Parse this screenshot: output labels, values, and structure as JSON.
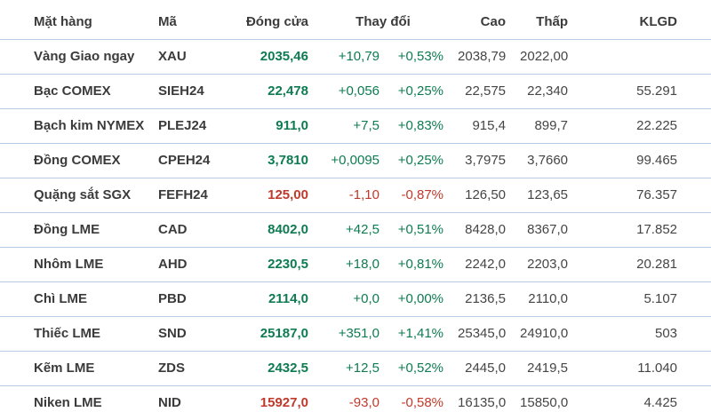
{
  "colors": {
    "up": "#0e7b52",
    "down": "#c0392b",
    "heading": "#3b3b3b",
    "text": "#454545",
    "divider": "#b7cce2"
  },
  "header": {
    "name": "Mặt hàng",
    "code": "Mã",
    "close": "Đóng cửa",
    "change": "Thay đổi",
    "high": "Cao",
    "low": "Thấp",
    "volume": "KLGD"
  },
  "chart_data": {
    "type": "table",
    "columns": [
      "Mặt hàng",
      "Mã",
      "Đóng cửa",
      "Thay đổi",
      "Thay đổi %",
      "Cao",
      "Thấp",
      "KLGD"
    ],
    "rows": [
      {
        "name": "Vàng Giao ngay",
        "code": "XAU",
        "close": "2035,46",
        "change": "+10,79",
        "percent": "+0,53%",
        "high": "2038,79",
        "low": "2022,00",
        "volume": "",
        "trend": "up"
      },
      {
        "name": "Bạc COMEX",
        "code": "SIEH24",
        "close": "22,478",
        "change": "+0,056",
        "percent": "+0,25%",
        "high": "22,575",
        "low": "22,340",
        "volume": "55.291",
        "trend": "up"
      },
      {
        "name": "Bạch kim NYMEX",
        "code": "PLEJ24",
        "close": "911,0",
        "change": "+7,5",
        "percent": "+0,83%",
        "high": "915,4",
        "low": "899,7",
        "volume": "22.225",
        "trend": "up"
      },
      {
        "name": "Đồng COMEX",
        "code": "CPEH24",
        "close": "3,7810",
        "change": "+0,0095",
        "percent": "+0,25%",
        "high": "3,7975",
        "low": "3,7660",
        "volume": "99.465",
        "trend": "up"
      },
      {
        "name": "Quặng sắt SGX",
        "code": "FEFH24",
        "close": "125,00",
        "change": "-1,10",
        "percent": "-0,87%",
        "high": "126,50",
        "low": "123,65",
        "volume": "76.357",
        "trend": "down"
      },
      {
        "name": "Đồng LME",
        "code": "CAD",
        "close": "8402,0",
        "change": "+42,5",
        "percent": "+0,51%",
        "high": "8428,0",
        "low": "8367,0",
        "volume": "17.852",
        "trend": "up"
      },
      {
        "name": "Nhôm LME",
        "code": "AHD",
        "close": "2230,5",
        "change": "+18,0",
        "percent": "+0,81%",
        "high": "2242,0",
        "low": "2203,0",
        "volume": "20.281",
        "trend": "up"
      },
      {
        "name": "Chì LME",
        "code": "PBD",
        "close": "2114,0",
        "change": "+0,0",
        "percent": "+0,00%",
        "high": "2136,5",
        "low": "2110,0",
        "volume": "5.107",
        "trend": "up"
      },
      {
        "name": "Thiếc LME",
        "code": "SND",
        "close": "25187,0",
        "change": "+351,0",
        "percent": "+1,41%",
        "high": "25345,0",
        "low": "24910,0",
        "volume": "503",
        "trend": "up"
      },
      {
        "name": "Kẽm LME",
        "code": "ZDS",
        "close": "2432,5",
        "change": "+12,5",
        "percent": "+0,52%",
        "high": "2445,0",
        "low": "2419,5",
        "volume": "11.040",
        "trend": "up"
      },
      {
        "name": "Niken LME",
        "code": "NID",
        "close": "15927,0",
        "change": "-93,0",
        "percent": "-0,58%",
        "high": "16135,0",
        "low": "15850,0",
        "volume": "4.425",
        "trend": "down"
      }
    ]
  }
}
